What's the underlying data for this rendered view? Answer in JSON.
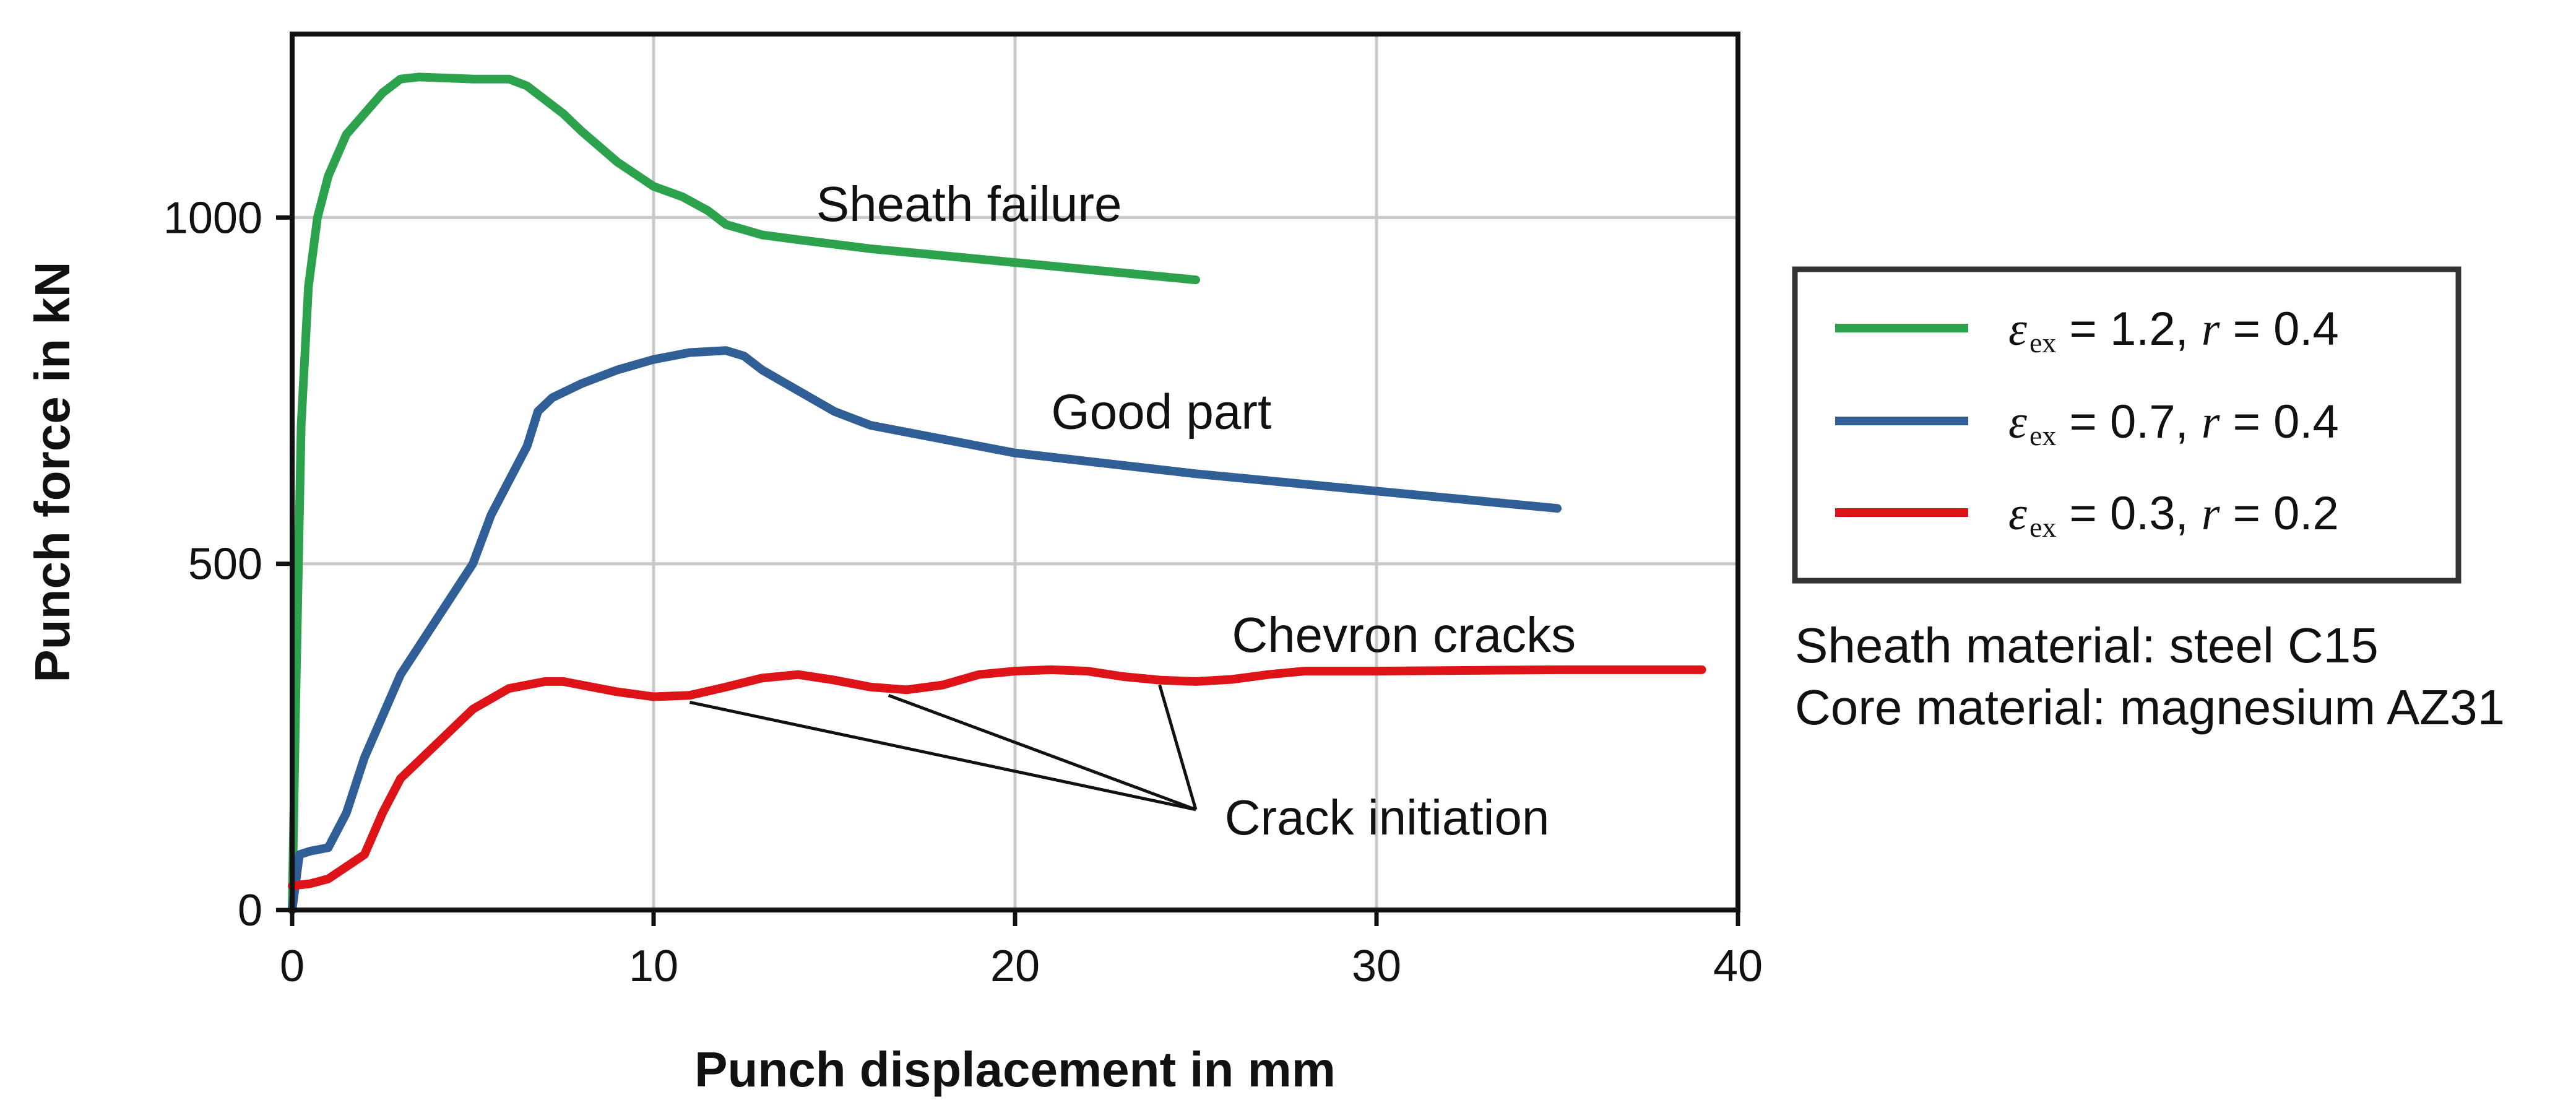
{
  "chart_data": {
    "type": "line",
    "title": "",
    "xlabel": "Punch displacement in mm",
    "ylabel": "Punch force in kN",
    "xlim": [
      0,
      40
    ],
    "ylim": [
      0,
      1265
    ],
    "xticks": [
      0,
      10,
      20,
      30,
      40
    ],
    "xtick_labels": [
      "0",
      "10",
      "20",
      "30",
      "40"
    ],
    "yticks": [
      0,
      500,
      1000
    ],
    "ytick_labels": [
      "0",
      "500",
      "1000"
    ],
    "grid": true,
    "legend_position": "right",
    "series": [
      {
        "name": "εex = 1.2, r = 0.4",
        "legend": {
          "symbol": "ε",
          "sub": "ex",
          "value_text": " = 1.2, ",
          "r_symbol": "r",
          "r_text": " = 0.4"
        },
        "color": "#2ca24c",
        "x": [
          0,
          0.1,
          0.25,
          0.45,
          0.7,
          1,
          1.5,
          2,
          2.5,
          3,
          3.5,
          4,
          5,
          5.5,
          6,
          6.5,
          7,
          7.5,
          8,
          9,
          10,
          10.8,
          11.5,
          12,
          13,
          14,
          16,
          18,
          20,
          22,
          24,
          25
        ],
        "y": [
          0,
          300,
          700,
          900,
          1000,
          1060,
          1120,
          1150,
          1180,
          1200,
          1203,
          1202,
          1200,
          1200,
          1200,
          1190,
          1170,
          1150,
          1125,
          1080,
          1045,
          1030,
          1010,
          990,
          975,
          968,
          955,
          945,
          935,
          925,
          915,
          910
        ]
      },
      {
        "name": "εex = 0.7, r = 0.4",
        "legend": {
          "symbol": "ε",
          "sub": "ex",
          "value_text": " = 0.7, ",
          "r_symbol": "r",
          "r_text": " = 0.4"
        },
        "color": "#2f5f96",
        "x": [
          0,
          0.2,
          0.5,
          1,
          1.5,
          2,
          2.5,
          3,
          4,
          5,
          5.5,
          6,
          6.5,
          6.8,
          7.2,
          8,
          9,
          10,
          11,
          12,
          12.5,
          13,
          14,
          15,
          16,
          18,
          20,
          25,
          30,
          35
        ],
        "y": [
          0,
          80,
          85,
          90,
          140,
          220,
          280,
          340,
          420,
          500,
          570,
          620,
          670,
          720,
          740,
          760,
          780,
          795,
          805,
          808,
          800,
          780,
          750,
          720,
          700,
          680,
          660,
          630,
          605,
          580
        ]
      },
      {
        "name": "εex = 0.3, r = 0.2",
        "legend": {
          "symbol": "ε",
          "sub": "ex",
          "value_text": " = 0.3, ",
          "r_symbol": "r",
          "r_text": " = 0.2"
        },
        "color": "#dd1318",
        "x": [
          0,
          0.5,
          1,
          2,
          2.5,
          3,
          4,
          5,
          6,
          7,
          7.5,
          8,
          9,
          10,
          11,
          12,
          13,
          14,
          15,
          16,
          17,
          18,
          19,
          20,
          21,
          22,
          23,
          24,
          25,
          26,
          27,
          28,
          30,
          35,
          39
        ],
        "y": [
          35,
          38,
          45,
          80,
          140,
          190,
          240,
          290,
          320,
          330,
          330,
          325,
          315,
          308,
          310,
          322,
          335,
          340,
          332,
          322,
          318,
          325,
          340,
          345,
          347,
          345,
          337,
          332,
          330,
          333,
          340,
          345,
          345,
          347,
          347
        ]
      }
    ],
    "annotations": [
      {
        "text": "Sheath failure",
        "x": 14.5,
        "y": 1020
      },
      {
        "text": "Good part",
        "x": 21,
        "y": 720
      },
      {
        "text": "Chevron cracks",
        "x": 26,
        "y": 398
      },
      {
        "text": "Crack initiation",
        "x": 25.8,
        "y": 134,
        "arrows_to": [
          [
            11,
            300
          ],
          [
            16.5,
            310
          ],
          [
            24,
            325
          ]
        ],
        "arrow_origin": [
          25,
          145
        ]
      }
    ],
    "notes": [
      "Sheath material: steel C15",
      "Core material: magnesium AZ31"
    ]
  }
}
